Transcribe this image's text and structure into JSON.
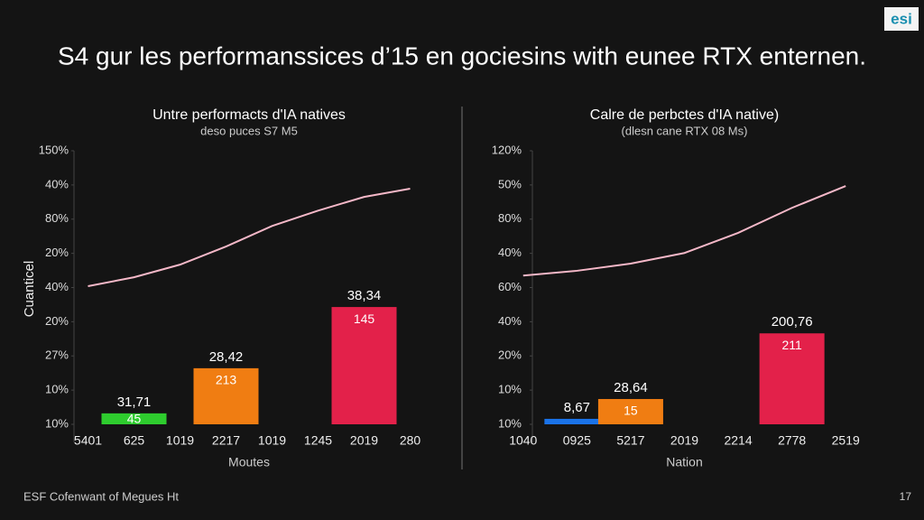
{
  "slide": {
    "title": "S4 gur les performanssices d’15 en gociesins with eunee RTX enternen.",
    "logo": "esi",
    "footer": "ESF Cofenwant of Megues Ht",
    "page": "17"
  },
  "chart_data": [
    {
      "type": "bar",
      "title": "Untre performacts d'IA natives",
      "subtitle": "deso puces S7 M5",
      "y_label": "Cuanticel",
      "x_label": "Moutes",
      "categories": [
        "5401",
        "625",
        "1019",
        "2217",
        "1019",
        "1245",
        "2019",
        "280"
      ],
      "ylim": [
        0,
        8
      ],
      "yticks": [
        {
          "value": 0,
          "label": "10%"
        },
        {
          "value": 1,
          "label": "10%"
        },
        {
          "value": 2,
          "label": "27%"
        },
        {
          "value": 3,
          "label": "20%"
        },
        {
          "value": 4,
          "label": "40%"
        },
        {
          "value": 5,
          "label": "20%"
        },
        {
          "value": 6,
          "label": "80%"
        },
        {
          "value": 7,
          "label": "40%"
        },
        {
          "value": 8,
          "label": "150%"
        }
      ],
      "series": [
        {
          "type": "bar",
          "values": [
            null,
            0.32,
            null,
            1.64,
            null,
            null,
            3.43,
            null
          ],
          "colors": [
            null,
            "#2ecc2e",
            null,
            "#f07d12",
            null,
            null,
            "#e3214a",
            null
          ],
          "labels_above": [
            null,
            "31,71",
            null,
            "28,42",
            null,
            null,
            "38,34",
            null
          ],
          "labels_inside": [
            null,
            "45",
            null,
            "213",
            null,
            null,
            "145",
            null
          ]
        },
        {
          "type": "line",
          "color": "#f5b8c8",
          "values": [
            4.04,
            4.3,
            4.67,
            5.2,
            5.8,
            6.25,
            6.65,
            6.89
          ]
        }
      ]
    },
    {
      "type": "bar",
      "title": "Calre de perbctes d'IA native)",
      "subtitle": "(dlesn cane RTX 08 Ms)",
      "x_label": "Nation",
      "categories": [
        "1040",
        "0925",
        "5217",
        "2019",
        "2214",
        "2778",
        "2519"
      ],
      "ylim": [
        0,
        8
      ],
      "yticks": [
        {
          "value": 0,
          "label": "10%"
        },
        {
          "value": 1,
          "label": "10%"
        },
        {
          "value": 2,
          "label": "20%"
        },
        {
          "value": 3,
          "label": "40%"
        },
        {
          "value": 4,
          "label": "60%"
        },
        {
          "value": 5,
          "label": "40%"
        },
        {
          "value": 6,
          "label": "80%"
        },
        {
          "value": 7,
          "label": "50%"
        },
        {
          "value": 8,
          "label": "120%"
        }
      ],
      "series": [
        {
          "type": "bar",
          "values": [
            null,
            0.16,
            0.74,
            null,
            null,
            2.66,
            null
          ],
          "colors": [
            null,
            "#1a73e8",
            "#f07d12",
            null,
            null,
            "#e3214a",
            null
          ],
          "labels_above": [
            null,
            "8,67",
            "28,64",
            null,
            null,
            "200,76",
            null
          ],
          "labels_inside": [
            null,
            null,
            "15",
            null,
            null,
            "211",
            null
          ]
        },
        {
          "type": "line",
          "color": "#f5b8c8",
          "values": [
            4.35,
            4.49,
            4.7,
            5.01,
            5.6,
            6.33,
            6.97
          ]
        }
      ]
    }
  ]
}
